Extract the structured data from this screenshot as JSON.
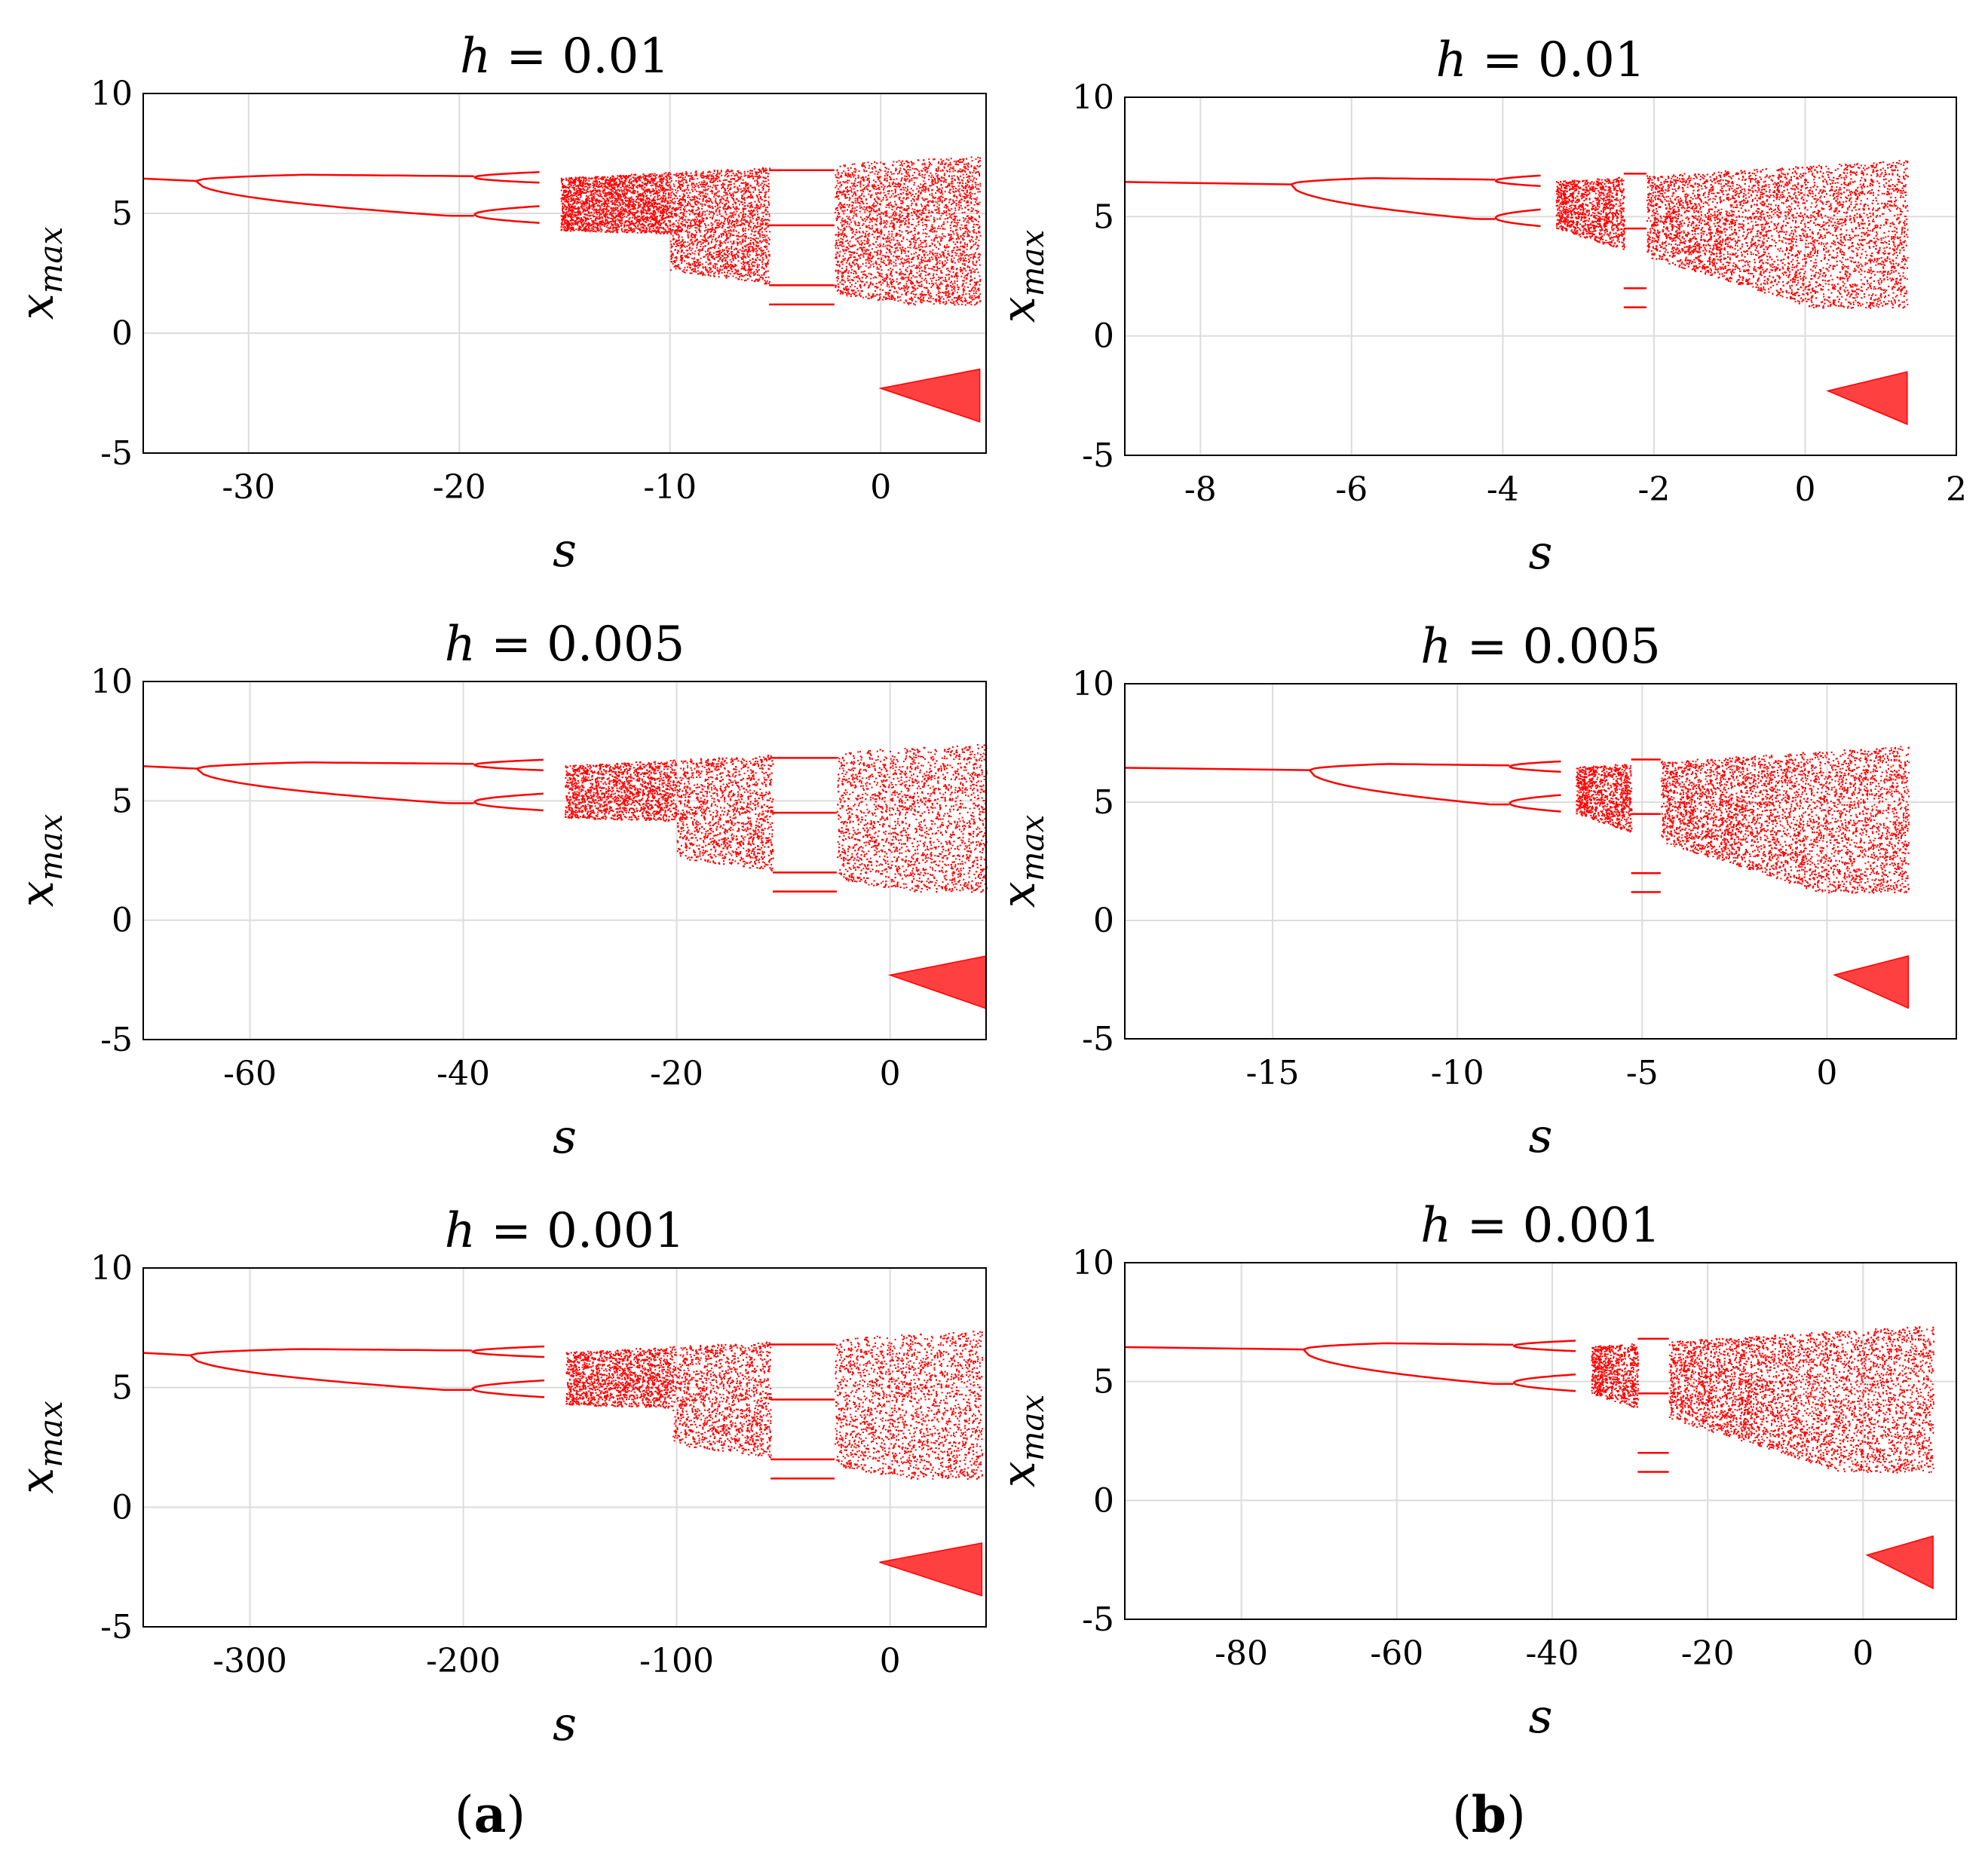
{
  "colors": {
    "data": "#ff0000",
    "grid": "#dcdcdc",
    "axis": "#000000",
    "background": "#ffffff"
  },
  "figure_labels": [
    {
      "open": "(",
      "letter": "a",
      "close": ")"
    },
    {
      "open": "(",
      "letter": "b",
      "close": ")"
    }
  ],
  "chart_data": [
    {
      "type": "scatter",
      "column": "a",
      "row": 1,
      "title": {
        "var": "h",
        "eq": " = ",
        "value": "0.01"
      },
      "xlabel": "s",
      "ylabel": {
        "base": "x",
        "sub": "max"
      },
      "xlim": [
        -35,
        5
      ],
      "ylim": [
        -5,
        10
      ],
      "xticks": [
        -30,
        -20,
        -10,
        0
      ],
      "xtick_labels": [
        "-30",
        "-20",
        "-10",
        "0"
      ],
      "yticks": [
        -5,
        0,
        5,
        10
      ],
      "ytick_labels": [
        "-5",
        "0",
        "5",
        "10"
      ],
      "features": {
        "start": -35,
        "pd1": -32.5,
        "pd2": -19.3,
        "pd3": -16.2,
        "chaos": -15.2,
        "band_merge": -10,
        "window": [
          -5.3,
          -2.2
        ],
        "end": 4.7,
        "lower_lobe_start": 0
      }
    },
    {
      "type": "scatter",
      "column": "b",
      "row": 1,
      "title": {
        "var": "h",
        "eq": " = ",
        "value": "0.01"
      },
      "xlabel": "s",
      "ylabel": {
        "base": "x",
        "sub": "max"
      },
      "xlim": [
        -9,
        2
      ],
      "ylim": [
        -5,
        10
      ],
      "xticks": [
        -8,
        -6,
        -4,
        -2,
        0,
        2
      ],
      "xtick_labels": [
        "-8",
        "-6",
        "-4",
        "-2",
        "0",
        "2"
      ],
      "yticks": [
        -5,
        0,
        5,
        10
      ],
      "ytick_labels": [
        "-5",
        "0",
        "5",
        "10"
      ],
      "features": {
        "start": -9,
        "pd1": -6.8,
        "pd2": -4.1,
        "pd3": -3.5,
        "chaos": -3.3,
        "window": [
          -2.4,
          -2.1
        ],
        "end": 1.35,
        "lower_lobe_start": 0.3
      }
    },
    {
      "type": "scatter",
      "column": "a",
      "row": 2,
      "title": {
        "var": "h",
        "eq": " = ",
        "value": "0.005"
      },
      "xlabel": "s",
      "ylabel": {
        "base": "x",
        "sub": "max"
      },
      "xlim": [
        -70,
        9
      ],
      "ylim": [
        -5,
        10
      ],
      "xticks": [
        -60,
        -40,
        -20,
        0
      ],
      "xtick_labels": [
        "-60",
        "-40",
        "-20",
        "0"
      ],
      "yticks": [
        -5,
        0,
        5,
        10
      ],
      "ytick_labels": [
        "-5",
        "0",
        "5",
        "10"
      ],
      "features": {
        "start": -70,
        "pd1": -65,
        "pd2": -39,
        "pd3": -32.5,
        "chaos": -30.5,
        "band_merge": -20,
        "window": [
          -11,
          -5
        ],
        "end": 9,
        "lower_lobe_start": 0
      }
    },
    {
      "type": "scatter",
      "column": "b",
      "row": 2,
      "title": {
        "var": "h",
        "eq": " = ",
        "value": "0.005"
      },
      "xlabel": "s",
      "ylabel": {
        "base": "x",
        "sub": "max"
      },
      "xlim": [
        -19,
        3.5
      ],
      "ylim": [
        -5,
        10
      ],
      "xticks": [
        -15,
        -10,
        -5,
        0
      ],
      "xtick_labels": [
        "-15",
        "-10",
        "-5",
        "0"
      ],
      "yticks": [
        -5,
        0,
        5,
        10
      ],
      "ytick_labels": [
        "-5",
        "0",
        "5",
        "10"
      ],
      "features": {
        "start": -19,
        "pd1": -14,
        "pd2": -8.6,
        "pd3": -7.2,
        "chaos": -6.8,
        "window": [
          -5.3,
          -4.5
        ],
        "end": 2.2,
        "lower_lobe_start": 0.2
      }
    },
    {
      "type": "scatter",
      "column": "a",
      "row": 3,
      "title": {
        "var": "h",
        "eq": " = ",
        "value": "0.001"
      },
      "xlabel": "s",
      "ylabel": {
        "base": "x",
        "sub": "max"
      },
      "xlim": [
        -350,
        45
      ],
      "ylim": [
        -5,
        10
      ],
      "xticks": [
        -300,
        -200,
        -100,
        0
      ],
      "xtick_labels": [
        "-300",
        "-200",
        "-100",
        "0"
      ],
      "yticks": [
        -5,
        0,
        5,
        10
      ],
      "ytick_labels": [
        "-5",
        "0",
        "5",
        "10"
      ],
      "features": {
        "start": -350,
        "pd1": -328,
        "pd2": -196,
        "pd3": -162,
        "chaos": -152,
        "band_merge": -102,
        "window": [
          -56,
          -26
        ],
        "end": 43,
        "lower_lobe_start": -5
      }
    },
    {
      "type": "scatter",
      "column": "b",
      "row": 3,
      "title": {
        "var": "h",
        "eq": " = ",
        "value": "0.001"
      },
      "xlabel": "s",
      "ylabel": {
        "base": "x",
        "sub": "max"
      },
      "xlim": [
        -95,
        12
      ],
      "ylim": [
        -5,
        10
      ],
      "xticks": [
        -80,
        -60,
        -40,
        -20,
        0
      ],
      "xtick_labels": [
        "-80",
        "-60",
        "-40",
        "-20",
        "0"
      ],
      "yticks": [
        -5,
        0,
        5,
        10
      ],
      "ytick_labels": [
        "-5",
        "0",
        "5",
        "10"
      ],
      "features": {
        "start": -95,
        "pd1": -72,
        "pd2": -45,
        "pd3": -37,
        "chaos": -35,
        "window": [
          -29,
          -25
        ],
        "end": 9,
        "lower_lobe_start": 0.5
      }
    }
  ]
}
